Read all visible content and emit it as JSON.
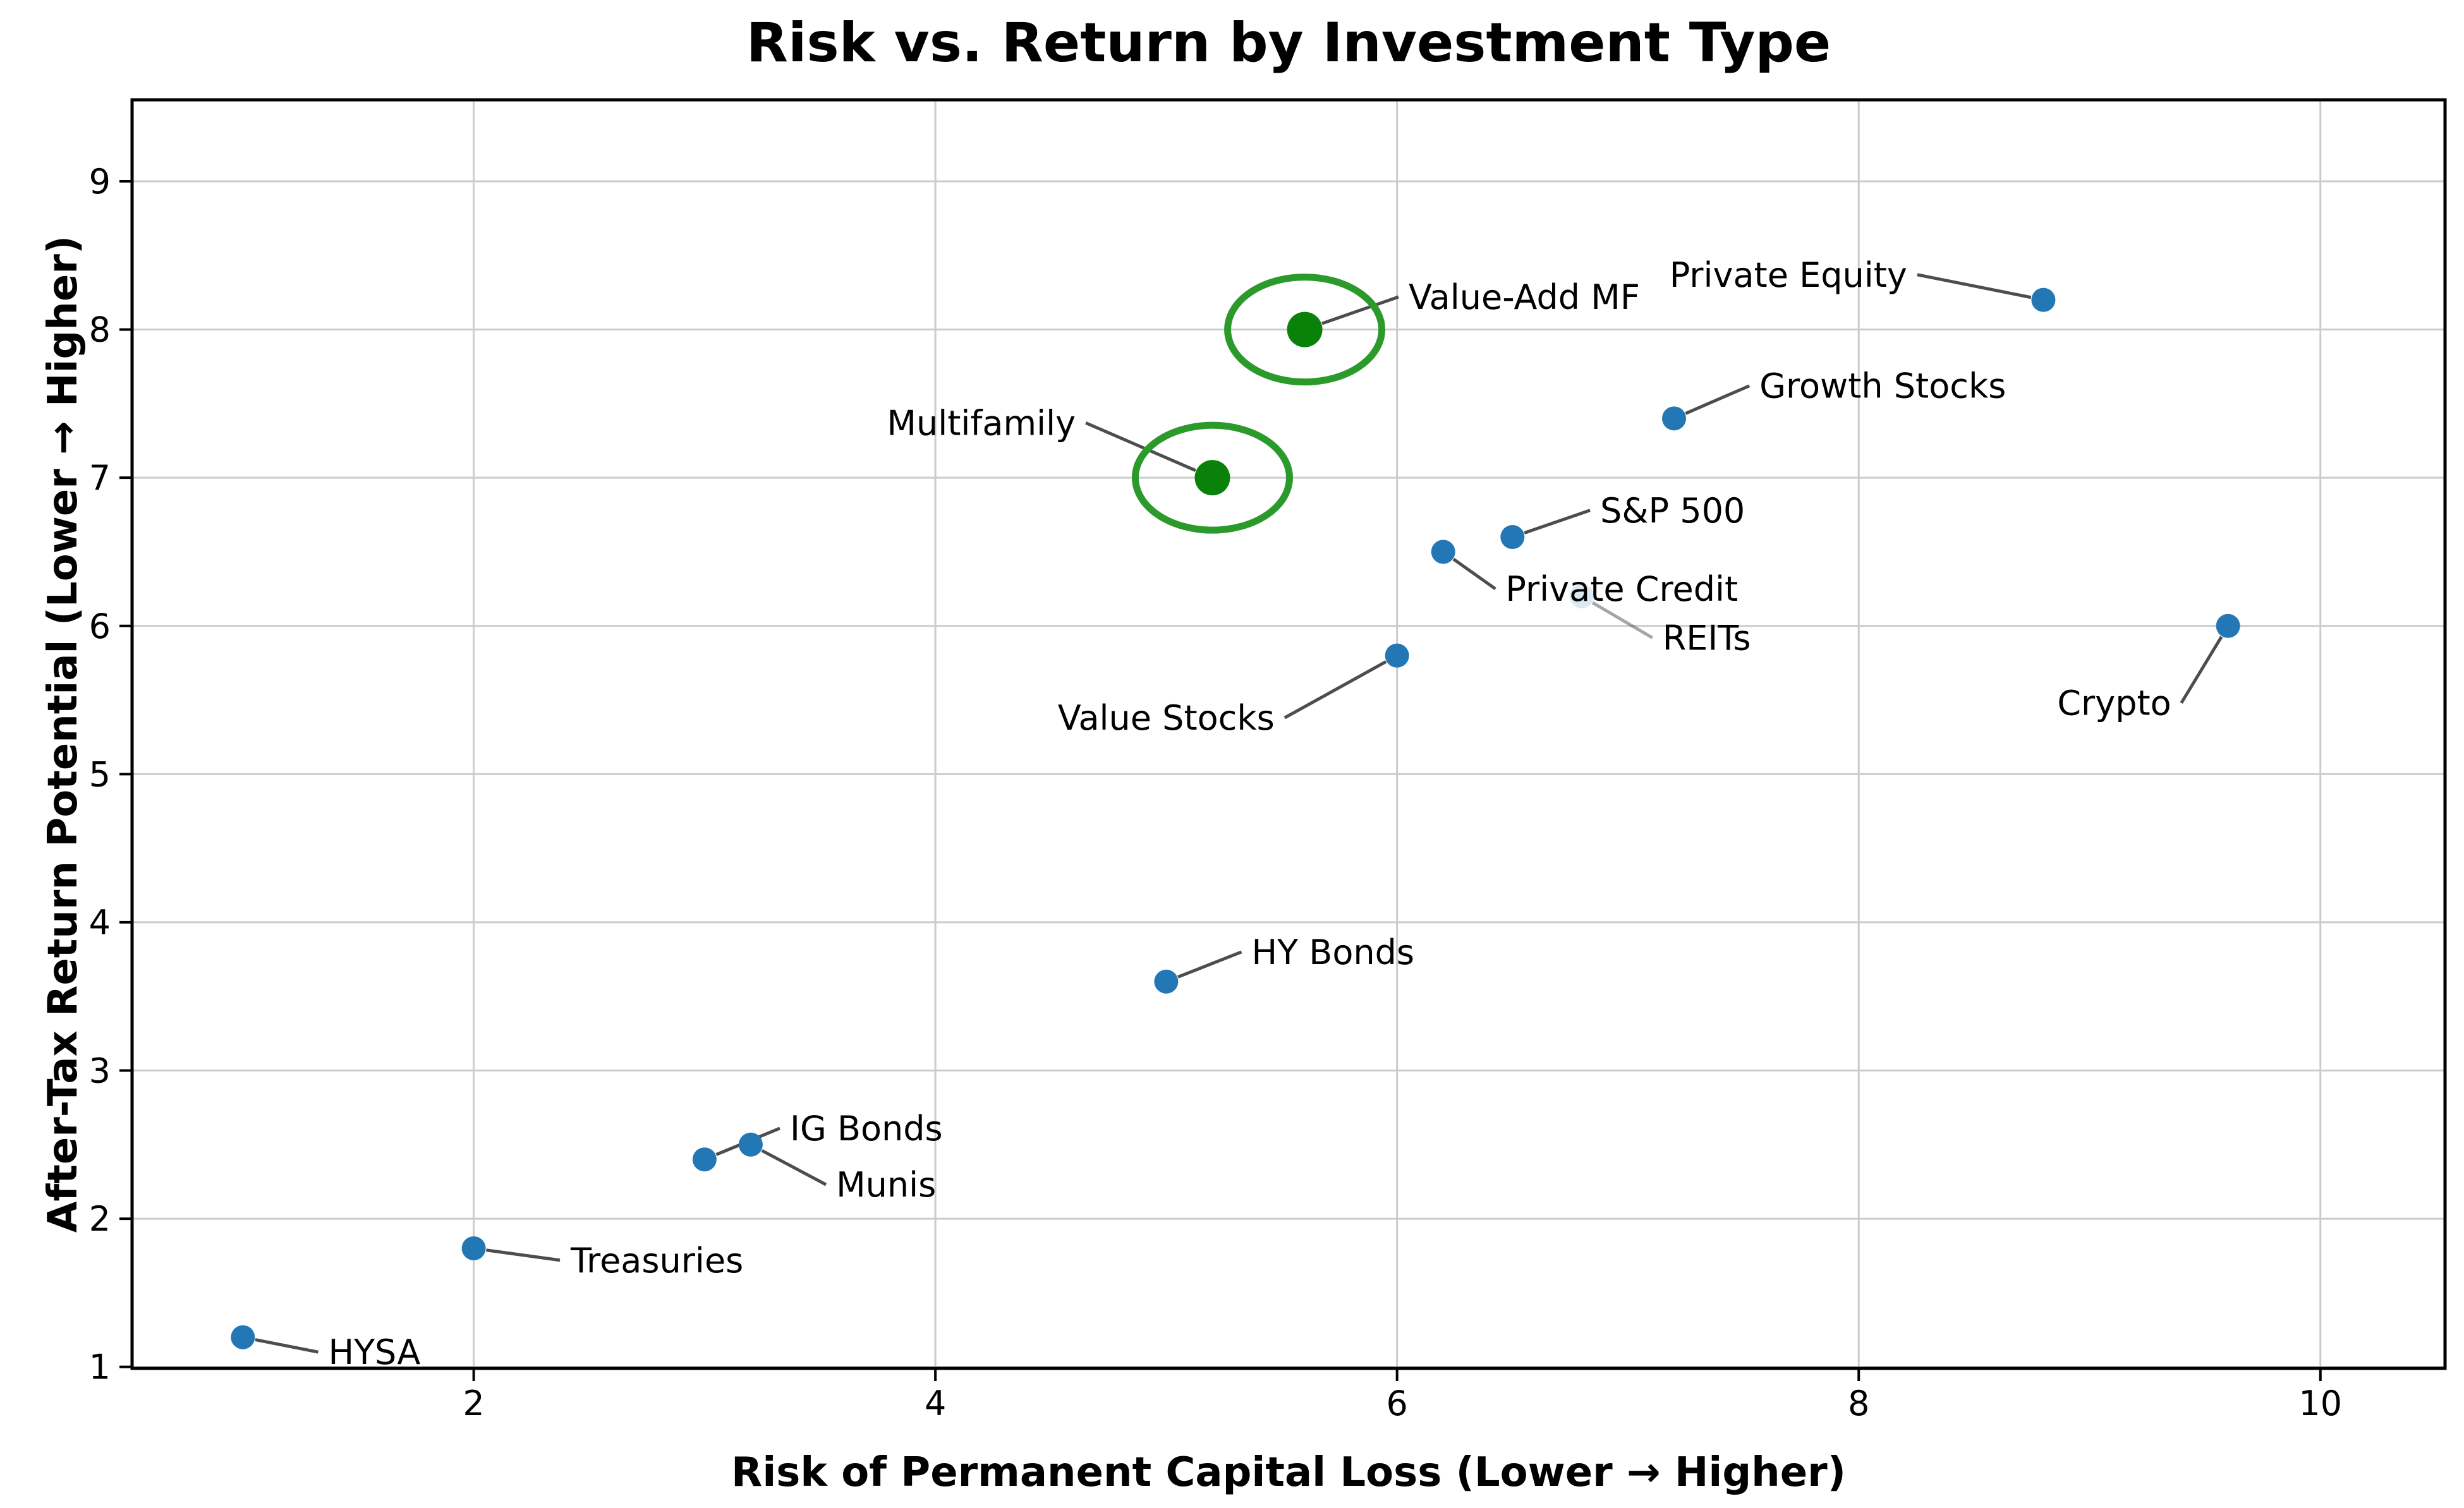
{
  "chart_data": {
    "type": "scatter",
    "title": "Risk vs. Return by Investment Type",
    "xlabel": "Risk of Permanent Capital Loss (Lower → Higher)",
    "ylabel": "After-Tax Return Potential (Lower → Higher)",
    "xlim": [
      0.52,
      10.54
    ],
    "ylim": [
      0.99,
      9.55
    ],
    "xticks": [
      2,
      4,
      6,
      8,
      10
    ],
    "yticks": [
      1,
      2,
      3,
      4,
      5,
      6,
      7,
      8,
      9
    ],
    "grid": "on",
    "legend": "none",
    "points": [
      {
        "label": "HYSA",
        "x": 1.0,
        "y": 1.2,
        "group": "standard",
        "label_x": 1.37,
        "label_y": 1.1
      },
      {
        "label": "Treasuries",
        "x": 2.0,
        "y": 1.8,
        "group": "standard",
        "label_x": 2.42,
        "label_y": 1.72
      },
      {
        "label": "IG Bonds",
        "x": 3.0,
        "y": 2.4,
        "group": "standard",
        "label_x": 3.37,
        "label_y": 2.61
      },
      {
        "label": "Munis",
        "x": 3.2,
        "y": 2.5,
        "group": "standard",
        "label_x": 3.57,
        "label_y": 2.23
      },
      {
        "label": "HY Bonds",
        "x": 5.0,
        "y": 3.6,
        "group": "standard",
        "label_x": 5.37,
        "label_y": 3.8
      },
      {
        "label": "Value Stocks",
        "x": 6.0,
        "y": 5.8,
        "group": "standard",
        "label_x": 4.53,
        "label_y": 5.38
      },
      {
        "label": "REITs",
        "x": 6.8,
        "y": 6.2,
        "group": "faint",
        "label_x": 7.15,
        "label_y": 5.92
      },
      {
        "label": "Private Credit",
        "x": 6.2,
        "y": 6.5,
        "group": "standard",
        "label_x": 6.47,
        "label_y": 6.25
      },
      {
        "label": "S&P 500",
        "x": 6.5,
        "y": 6.6,
        "group": "standard",
        "label_x": 6.88,
        "label_y": 6.78
      },
      {
        "label": "Growth Stocks",
        "x": 7.2,
        "y": 7.4,
        "group": "standard",
        "label_x": 7.57,
        "label_y": 7.62
      },
      {
        "label": "Multifamily",
        "x": 5.2,
        "y": 7.0,
        "group": "highlight",
        "label_x": 3.79,
        "label_y": 7.37
      },
      {
        "label": "Value-Add MF",
        "x": 5.6,
        "y": 8.0,
        "group": "highlight",
        "label_x": 6.05,
        "label_y": 8.22
      },
      {
        "label": "Private Equity",
        "x": 8.8,
        "y": 8.2,
        "group": "standard",
        "label_x": 7.18,
        "label_y": 8.37
      },
      {
        "label": "Crypto",
        "x": 9.6,
        "y": 6.0,
        "group": "standard",
        "label_x": 8.86,
        "label_y": 5.48
      }
    ],
    "colors": {
      "standard_dot": "#2377b4",
      "highlight_dot": "#0a820a",
      "highlight_ring": "#2b9a2b",
      "faint_dot": "#1f77b4",
      "leader_line": "#4d4d4d",
      "gridline": "#cccccc",
      "spine": "#000000",
      "text": "#000000",
      "background": "#ffffff"
    }
  }
}
